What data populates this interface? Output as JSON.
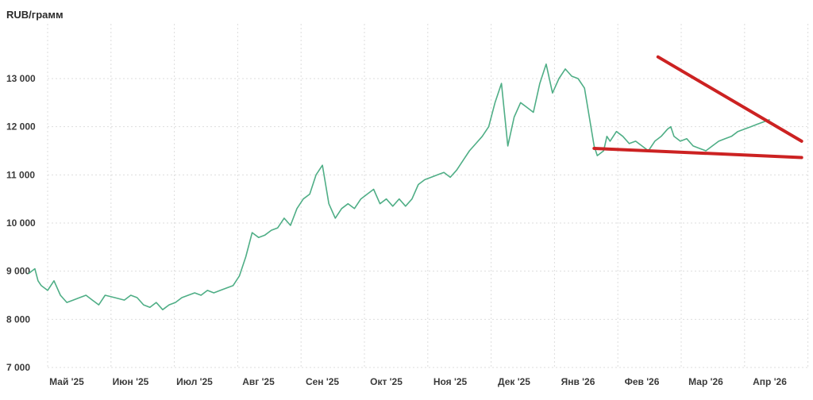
{
  "chart_data": {
    "type": "line",
    "unit_label": "RUB/грамм",
    "ylim": [
      7000,
      13600
    ],
    "y_ticks": [
      {
        "value": 7000,
        "label": "7 000"
      },
      {
        "value": 8000,
        "label": "8 000"
      },
      {
        "value": 9000,
        "label": "9 000"
      },
      {
        "value": 10000,
        "label": "10 000"
      },
      {
        "value": 11000,
        "label": "11 000"
      },
      {
        "value": 12000,
        "label": "12 000"
      },
      {
        "value": 13000,
        "label": "13 000"
      }
    ],
    "x_ticks": [
      "Май '25",
      "Июн '25",
      "Июл '25",
      "Авг '25",
      "Сен '25",
      "Окт '25",
      "Ноя '25",
      "Дек '25",
      "Янв '26",
      "Фев '26",
      "Мар '26",
      "Апр '26"
    ],
    "grid": true,
    "series": [
      {
        "color": "#4fae86",
        "x": [
          0,
          0.1,
          0.15,
          0.2,
          0.3,
          0.4,
          0.5,
          0.6,
          0.7,
          0.8,
          0.9,
          1.0,
          1.1,
          1.2,
          1.35,
          1.5,
          1.6,
          1.7,
          1.8,
          1.9,
          2.0,
          2.1,
          2.2,
          2.3,
          2.4,
          2.5,
          2.6,
          2.7,
          2.8,
          2.9,
          3.0,
          3.1,
          3.2,
          3.3,
          3.4,
          3.5,
          3.6,
          3.7,
          3.8,
          3.9,
          4.0,
          4.1,
          4.2,
          4.3,
          4.4,
          4.5,
          4.6,
          4.7,
          4.8,
          4.9,
          5.0,
          5.1,
          5.2,
          5.3,
          5.4,
          5.5,
          5.6,
          5.7,
          5.8,
          5.9,
          6.0,
          6.1,
          6.2,
          6.3,
          6.4,
          6.5,
          6.6,
          6.7,
          6.8,
          6.9,
          7.0,
          7.1,
          7.2,
          7.3,
          7.4,
          7.5,
          7.6,
          7.7,
          7.8,
          7.9,
          8.0,
          8.1,
          8.2,
          8.3,
          8.4,
          8.5,
          8.6,
          8.7,
          8.8,
          8.85,
          8.9,
          9.0,
          9.05,
          9.1,
          9.2,
          9.3,
          9.4,
          9.5,
          9.6,
          9.7,
          9.8,
          9.9,
          10.0,
          10.05,
          10.1,
          10.2,
          10.3,
          10.4,
          10.5,
          10.6,
          10.7,
          10.8,
          10.9,
          11.0,
          11.1,
          11.2,
          11.3,
          11.4,
          11.5,
          11.6
        ],
        "y": [
          8950,
          9050,
          8800,
          8700,
          8600,
          8800,
          8500,
          8350,
          8400,
          8450,
          8500,
          8400,
          8300,
          8500,
          8450,
          8400,
          8500,
          8450,
          8300,
          8250,
          8350,
          8200,
          8300,
          8350,
          8450,
          8500,
          8550,
          8500,
          8600,
          8550,
          8600,
          8650,
          8700,
          8900,
          9300,
          9800,
          9700,
          9750,
          9850,
          9900,
          10100,
          9950,
          10300,
          10500,
          10600,
          11000,
          11200,
          10400,
          10100,
          10300,
          10400,
          10300,
          10500,
          10600,
          10700,
          10400,
          10500,
          10350,
          10500,
          10350,
          10500,
          10800,
          10900,
          10950,
          11000,
          11050,
          10950,
          11100,
          11300,
          11500,
          11650,
          11800,
          12000,
          12500,
          12900,
          11600,
          12200,
          12500,
          12400,
          12300,
          12900,
          13300,
          12700,
          13000,
          13200,
          13050,
          13000,
          12800,
          12000,
          11600,
          11400,
          11500,
          11800,
          11700,
          11900,
          11800,
          11650,
          11700,
          11600,
          11500,
          11700,
          11800,
          11950,
          12000,
          11800,
          11700,
          11750,
          11600,
          11550,
          11500,
          11600,
          11700,
          11750,
          11800,
          11900,
          11950,
          12000,
          12050,
          12100,
          12150
        ]
      }
    ],
    "annotations": [
      {
        "type": "trendline",
        "color": "#cc2222",
        "points": [
          [
            9.85,
            13450
          ],
          [
            11.6,
            11700
          ]
        ]
      },
      {
        "type": "trendline",
        "color": "#cc2222",
        "points": [
          [
            8.85,
            11550
          ],
          [
            11.6,
            11360
          ]
        ]
      }
    ]
  }
}
